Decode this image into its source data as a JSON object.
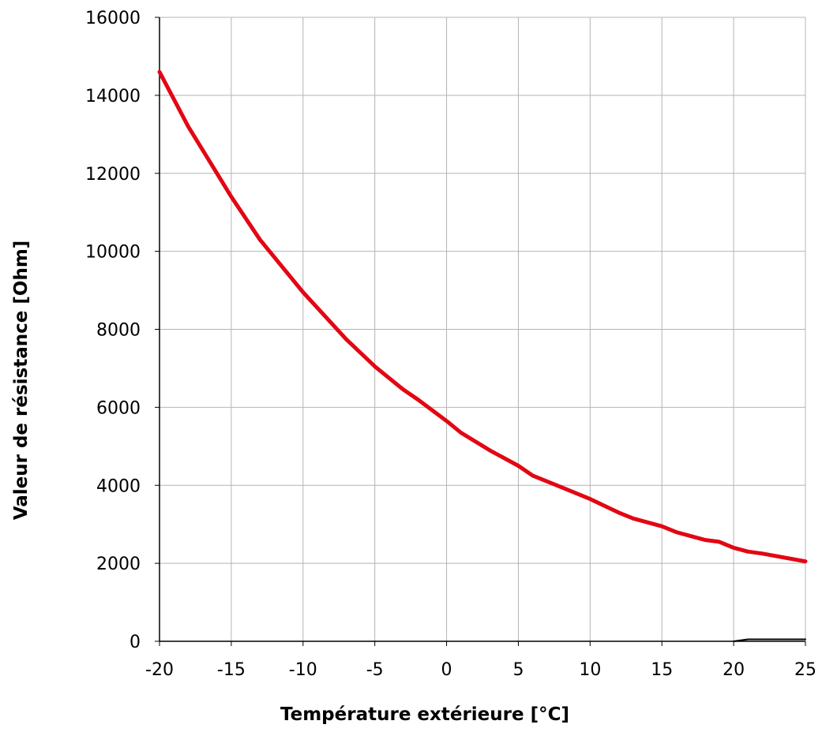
{
  "chart_data": {
    "type": "line",
    "title": "",
    "xlabel": "Température extérieure [°C]",
    "ylabel": "Valeur de résistance [Ohm]",
    "xlim": [
      -20,
      25
    ],
    "ylim": [
      0,
      16000
    ],
    "x_ticks": [
      "-20",
      "-15",
      "-10",
      "-5",
      "0",
      "5",
      "10",
      "15",
      "20",
      "25"
    ],
    "y_ticks": [
      "0",
      "2000",
      "4000",
      "6000",
      "8000",
      "10000",
      "12000",
      "14000",
      "16000"
    ],
    "grid": true,
    "legend": "none",
    "series": [
      {
        "color": "#e30613",
        "x": [
          -20,
          -18,
          -15,
          -13,
          -10,
          -8,
          -7,
          -5,
          -3,
          -2,
          0,
          1,
          3,
          5,
          6,
          8,
          10,
          12,
          13,
          15,
          16,
          18,
          19,
          20,
          21,
          22,
          25
        ],
        "y": [
          14600,
          13200,
          11400,
          10300,
          8950,
          8150,
          7750,
          7050,
          6450,
          6200,
          5650,
          5350,
          4900,
          4500,
          4250,
          3950,
          3650,
          3300,
          3150,
          2950,
          2800,
          2600,
          2550,
          2400,
          2300,
          2250,
          2050
        ]
      },
      {
        "color": "#000000",
        "x": [
          20,
          21,
          22,
          23,
          24,
          25
        ],
        "y": [
          0,
          50,
          50,
          50,
          50,
          50
        ]
      }
    ]
  }
}
